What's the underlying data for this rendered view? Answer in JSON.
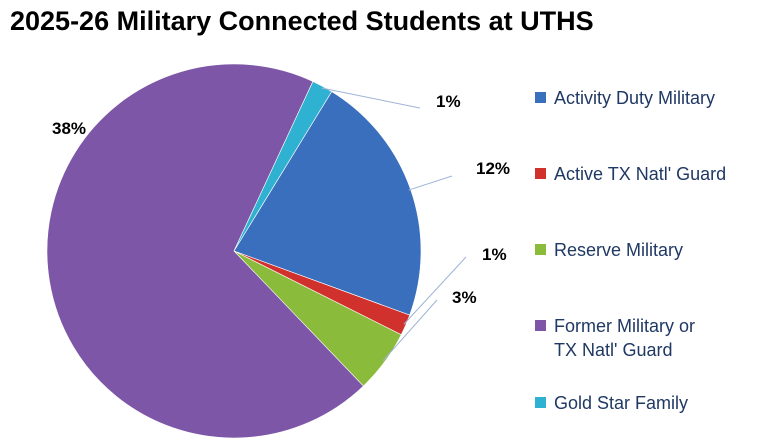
{
  "chart_data": {
    "type": "pie",
    "title": "2025-26 Military Connected Students at UTHS",
    "categories": [
      "Activity Duty Military",
      "Active TX Natl' Guard",
      "Reserve Military",
      "Former Military or TX Natl' Guard",
      "Gold Star Family"
    ],
    "values": [
      12,
      1,
      3,
      38,
      1
    ],
    "data_labels": [
      "12%",
      "1%",
      "3%",
      "38%",
      "1%"
    ],
    "colors": [
      "#3a6fbd",
      "#d0312d",
      "#8bbb3b",
      "#7d56a8",
      "#2fb2d2"
    ],
    "legend": {
      "placement": "right",
      "lines": [
        [
          "Activity Duty Military"
        ],
        [
          "Active TX Natl' Guard"
        ],
        [
          "Reserve Military"
        ],
        [
          "Former Military or",
          "TX Natl' Guard"
        ],
        [
          "Gold Star Family"
        ]
      ]
    }
  }
}
